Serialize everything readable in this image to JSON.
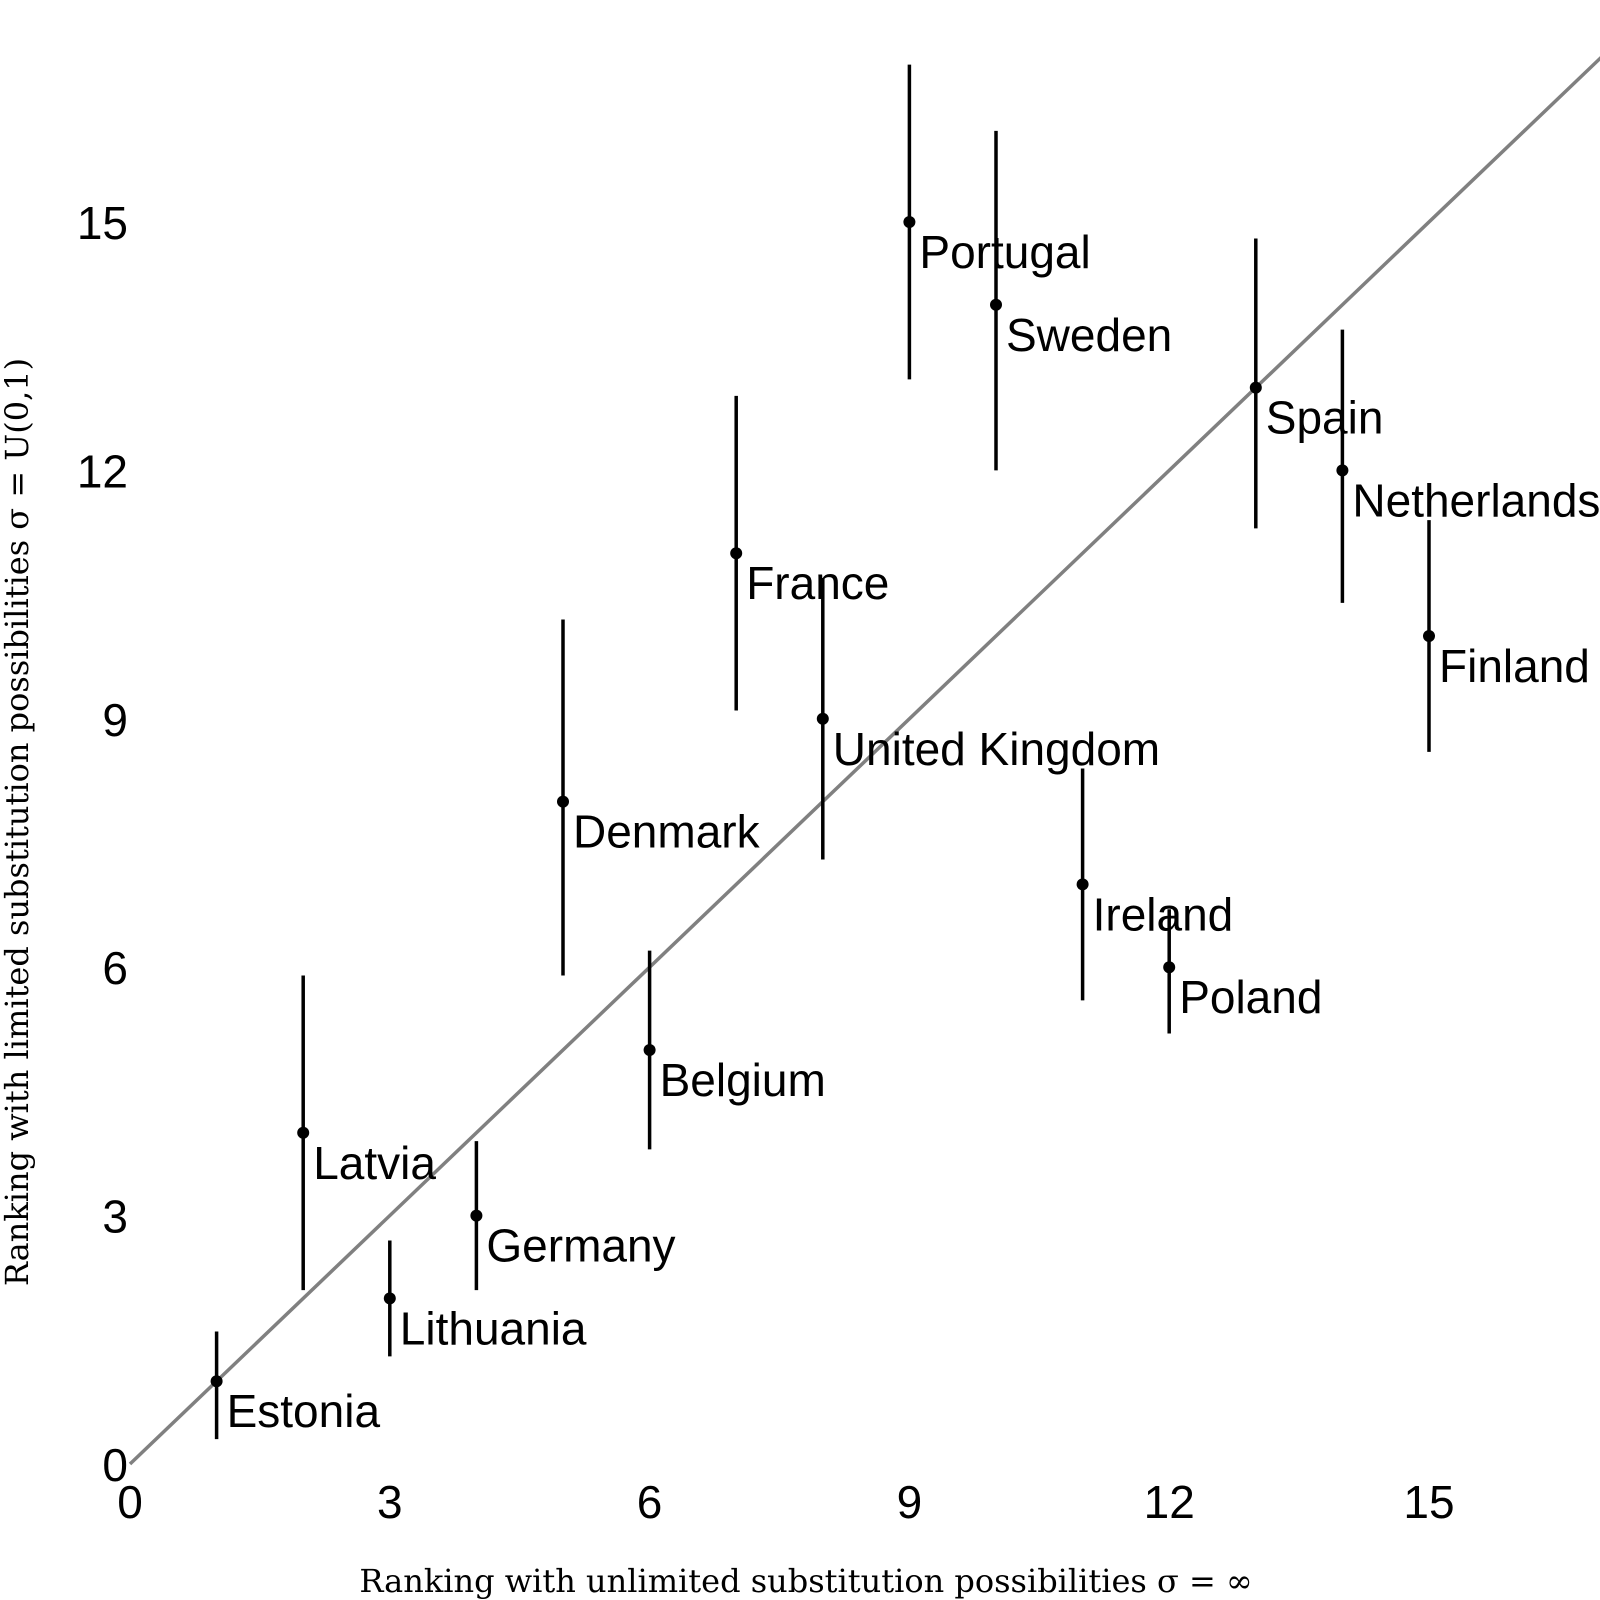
{
  "chart_data": {
    "type": "scatter",
    "title": "",
    "xlabel": "Ranking with unlimited substitution possibilities   σ = ∞",
    "ylabel": "Ranking with limited substitution possibilities   σ = U(0,1)",
    "xlim": [
      0,
      17.5
    ],
    "ylim": [
      0,
      17.5
    ],
    "xticks": [
      0,
      3,
      6,
      9,
      12,
      15
    ],
    "yticks": [
      0,
      3,
      6,
      9,
      12,
      15
    ],
    "reference_line": "y = x",
    "grid": false,
    "points": [
      {
        "label": "Estonia",
        "x": 1,
        "y": 1,
        "low": 0.3,
        "high": 1.6
      },
      {
        "label": "Latvia",
        "x": 2,
        "y": 4,
        "low": 2.1,
        "high": 5.9
      },
      {
        "label": "Lithuania",
        "x": 3,
        "y": 2,
        "low": 1.3,
        "high": 2.7
      },
      {
        "label": "Germany",
        "x": 4,
        "y": 3,
        "low": 2.1,
        "high": 3.9
      },
      {
        "label": "Denmark",
        "x": 5,
        "y": 8,
        "low": 5.9,
        "high": 10.2
      },
      {
        "label": "Belgium",
        "x": 6,
        "y": 5,
        "low": 3.8,
        "high": 6.2
      },
      {
        "label": "France",
        "x": 7,
        "y": 11,
        "low": 9.1,
        "high": 12.9
      },
      {
        "label": "United Kingdom",
        "x": 8,
        "y": 9,
        "low": 7.3,
        "high": 10.7
      },
      {
        "label": "Portugal",
        "x": 9,
        "y": 15,
        "low": 13.1,
        "high": 16.9
      },
      {
        "label": "Sweden",
        "x": 10,
        "y": 14,
        "low": 12.0,
        "high": 16.1
      },
      {
        "label": "Ireland",
        "x": 11,
        "y": 7,
        "low": 5.6,
        "high": 8.4
      },
      {
        "label": "Poland",
        "x": 12,
        "y": 6,
        "low": 5.2,
        "high": 6.7
      },
      {
        "label": "Spain",
        "x": 13,
        "y": 13,
        "low": 11.3,
        "high": 14.8
      },
      {
        "label": "Netherlands",
        "x": 14,
        "y": 12,
        "low": 10.4,
        "high": 13.7
      },
      {
        "label": "Finland",
        "x": 15,
        "y": 10,
        "low": 8.6,
        "high": 11.4
      }
    ]
  }
}
